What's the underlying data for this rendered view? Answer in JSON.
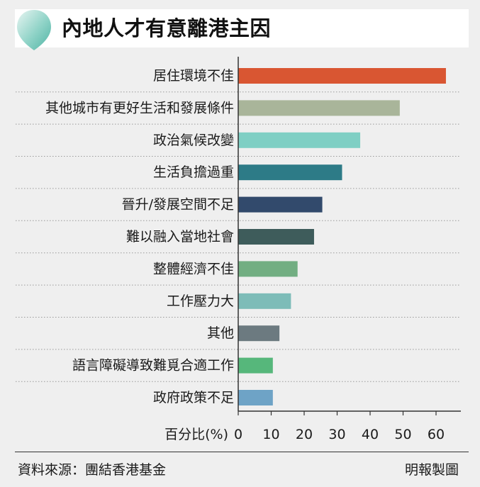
{
  "chart_data": {
    "type": "bar",
    "orientation": "horizontal",
    "title": "內地人才有意離港主因",
    "categories": [
      "居住環境不佳",
      "其他城市有更好生活和發展條件",
      "政治氣候改變",
      "生活負擔過重",
      "晉升/發展空間不足",
      "難以融入當地社會",
      "整體經濟不佳",
      "工作壓力大",
      "其他",
      "語言障礙導致難覓合適工作",
      "政府政策不足"
    ],
    "values": [
      63,
      49,
      37,
      31.5,
      25.5,
      23,
      18,
      16,
      12.5,
      10.5,
      10.5
    ],
    "colors": [
      "#d95632",
      "#a9b59a",
      "#7fcfc4",
      "#2d7b87",
      "#324a6c",
      "#3e5c5b",
      "#72ae82",
      "#7dbcb8",
      "#6c7a80",
      "#56b77b",
      "#6ea3c6"
    ],
    "xlabel": "百分比(%)",
    "xticks": [
      0,
      10,
      20,
      30,
      40,
      50,
      60
    ],
    "xlim": [
      0,
      66
    ],
    "grid": "dotted row separators"
  },
  "footer": {
    "source": "資料來源：團結香港基金",
    "credit": "明報製圖"
  },
  "icons": {
    "title": "teardrop-icon"
  },
  "accent": "#5fbfb0"
}
